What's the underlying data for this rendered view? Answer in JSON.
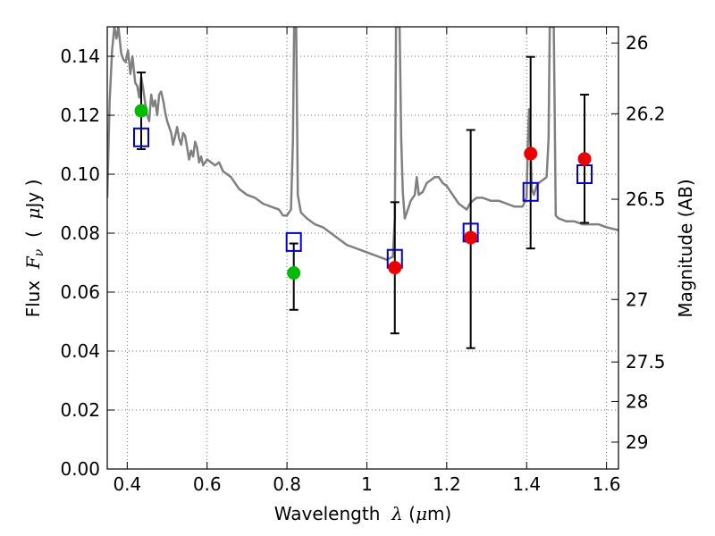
{
  "chart_data": {
    "type": "scatter",
    "xlabel": "Wavelength λ (μm)",
    "ylabel": "Flux F_ν (μJy)",
    "ylabel_right": "Magnitude (AB)",
    "xlim": [
      0.35,
      1.63
    ],
    "ylim": [
      0.0,
      0.15
    ],
    "x_ticks": [
      0.4,
      0.6,
      0.8,
      1.0,
      1.2,
      1.4,
      1.6
    ],
    "x_tick_labels": [
      "0.4",
      "0.6",
      "0.8",
      "1",
      "1.2",
      "1.4",
      "1.6"
    ],
    "y_ticks": [
      0.0,
      0.02,
      0.04,
      0.06,
      0.08,
      0.1,
      0.12,
      0.14
    ],
    "y_tick_labels": [
      "0.00",
      "0.02",
      "0.04",
      "0.06",
      "0.08",
      "0.10",
      "0.12",
      "0.14"
    ],
    "right_ticks": [
      {
        "flux": 0.1445,
        "label": "26"
      },
      {
        "flux": 0.1205,
        "label": "26.2"
      },
      {
        "flux": 0.0915,
        "label": "26.5"
      },
      {
        "flux": 0.0575,
        "label": "27"
      },
      {
        "flux": 0.0363,
        "label": "27.5"
      },
      {
        "flux": 0.0229,
        "label": "28"
      },
      {
        "flux": 0.0091,
        "label": "29"
      }
    ],
    "grid": true,
    "model_spectrum": {
      "color": "#808080",
      "points": [
        [
          0.35,
          0.092
        ],
        [
          0.356,
          0.125
        ],
        [
          0.362,
          0.142
        ],
        [
          0.368,
          0.15
        ],
        [
          0.373,
          0.146
        ],
        [
          0.378,
          0.15
        ],
        [
          0.385,
          0.141
        ],
        [
          0.39,
          0.139
        ],
        [
          0.396,
          0.138
        ],
        [
          0.402,
          0.142
        ],
        [
          0.408,
          0.134
        ],
        [
          0.413,
          0.14
        ],
        [
          0.42,
          0.131
        ],
        [
          0.425,
          0.13
        ],
        [
          0.43,
          0.126
        ],
        [
          0.435,
          0.133
        ],
        [
          0.44,
          0.129
        ],
        [
          0.445,
          0.124
        ],
        [
          0.45,
          0.12
        ],
        [
          0.455,
          0.118
        ],
        [
          0.46,
          0.127
        ],
        [
          0.465,
          0.123
        ],
        [
          0.47,
          0.125
        ],
        [
          0.475,
          0.12
        ],
        [
          0.48,
          0.127
        ],
        [
          0.485,
          0.128
        ],
        [
          0.49,
          0.125
        ],
        [
          0.495,
          0.121
        ],
        [
          0.5,
          0.118
        ],
        [
          0.505,
          0.116
        ],
        [
          0.51,
          0.114
        ],
        [
          0.515,
          0.11
        ],
        [
          0.52,
          0.113
        ],
        [
          0.525,
          0.116
        ],
        [
          0.53,
          0.112
        ],
        [
          0.535,
          0.11
        ],
        [
          0.54,
          0.114
        ],
        [
          0.545,
          0.113
        ],
        [
          0.55,
          0.109
        ],
        [
          0.555,
          0.105
        ],
        [
          0.56,
          0.108
        ],
        [
          0.565,
          0.106
        ],
        [
          0.57,
          0.111
        ],
        [
          0.575,
          0.109
        ],
        [
          0.58,
          0.104
        ],
        [
          0.585,
          0.106
        ],
        [
          0.59,
          0.103
        ],
        [
          0.6,
          0.105
        ],
        [
          0.61,
          0.104
        ],
        [
          0.62,
          0.103
        ],
        [
          0.63,
          0.104
        ],
        [
          0.64,
          0.101
        ],
        [
          0.65,
          0.1
        ],
        [
          0.66,
          0.099
        ],
        [
          0.67,
          0.097
        ],
        [
          0.68,
          0.095
        ],
        [
          0.69,
          0.094
        ],
        [
          0.7,
          0.093
        ],
        [
          0.72,
          0.092
        ],
        [
          0.74,
          0.09
        ],
        [
          0.76,
          0.089
        ],
        [
          0.78,
          0.088
        ],
        [
          0.79,
          0.086
        ],
        [
          0.8,
          0.086
        ],
        [
          0.81,
          0.088
        ],
        [
          0.815,
          0.112
        ],
        [
          0.818,
          0.15
        ],
        [
          0.823,
          0.15
        ],
        [
          0.827,
          0.093
        ],
        [
          0.835,
          0.087
        ],
        [
          0.85,
          0.085
        ],
        [
          0.87,
          0.083
        ],
        [
          0.89,
          0.082
        ],
        [
          0.91,
          0.08
        ],
        [
          0.93,
          0.078
        ],
        [
          0.95,
          0.076
        ],
        [
          0.97,
          0.075
        ],
        [
          0.99,
          0.074
        ],
        [
          1.01,
          0.073
        ],
        [
          1.03,
          0.072
        ],
        [
          1.05,
          0.071
        ],
        [
          1.065,
          0.072
        ],
        [
          1.07,
          0.085
        ],
        [
          1.073,
          0.15
        ],
        [
          1.082,
          0.15
        ],
        [
          1.086,
          0.112
        ],
        [
          1.09,
          0.094
        ],
        [
          1.095,
          0.085
        ],
        [
          1.1,
          0.087
        ],
        [
          1.11,
          0.091
        ],
        [
          1.12,
          0.093
        ],
        [
          1.125,
          0.099
        ],
        [
          1.13,
          0.093
        ],
        [
          1.14,
          0.094
        ],
        [
          1.15,
          0.097
        ],
        [
          1.16,
          0.098
        ],
        [
          1.17,
          0.099
        ],
        [
          1.18,
          0.099
        ],
        [
          1.19,
          0.097
        ],
        [
          1.2,
          0.096
        ],
        [
          1.21,
          0.094
        ],
        [
          1.22,
          0.092
        ],
        [
          1.23,
          0.09
        ],
        [
          1.24,
          0.089
        ],
        [
          1.25,
          0.088
        ],
        [
          1.258,
          0.09
        ],
        [
          1.265,
          0.091
        ],
        [
          1.275,
          0.092
        ],
        [
          1.29,
          0.092
        ],
        [
          1.31,
          0.091
        ],
        [
          1.33,
          0.091
        ],
        [
          1.35,
          0.09
        ],
        [
          1.37,
          0.089
        ],
        [
          1.39,
          0.089
        ],
        [
          1.4,
          0.092
        ],
        [
          1.403,
          0.11
        ],
        [
          1.406,
          0.122
        ],
        [
          1.41,
          0.109
        ],
        [
          1.413,
          0.095
        ],
        [
          1.418,
          0.093
        ],
        [
          1.425,
          0.096
        ],
        [
          1.43,
          0.097
        ],
        [
          1.44,
          0.098
        ],
        [
          1.45,
          0.099
        ],
        [
          1.455,
          0.112
        ],
        [
          1.458,
          0.15
        ],
        [
          1.468,
          0.15
        ],
        [
          1.47,
          0.125
        ],
        [
          1.473,
          0.086
        ],
        [
          1.48,
          0.085
        ],
        [
          1.5,
          0.084
        ],
        [
          1.52,
          0.084
        ],
        [
          1.54,
          0.083
        ],
        [
          1.56,
          0.083
        ],
        [
          1.58,
          0.083
        ],
        [
          1.6,
          0.082
        ],
        [
          1.63,
          0.081
        ]
      ]
    },
    "series": [
      {
        "marker": "open-square",
        "color": "#0000cc",
        "points": [
          {
            "x": 0.435,
            "y": 0.1125
          },
          {
            "x": 0.817,
            "y": 0.077
          },
          {
            "x": 1.07,
            "y": 0.0713
          },
          {
            "x": 1.26,
            "y": 0.0802
          },
          {
            "x": 1.41,
            "y": 0.094
          },
          {
            "x": 1.545,
            "y": 0.1
          }
        ]
      },
      {
        "marker": "filled-circle",
        "color": "#00bb00",
        "points": [
          {
            "x": 0.435,
            "y": 0.1215,
            "yerr_low": 0.1085,
            "yerr_high": 0.1345
          },
          {
            "x": 0.817,
            "y": 0.0665,
            "yerr_low": 0.054,
            "yerr_high": 0.0765
          }
        ]
      },
      {
        "marker": "filled-circle",
        "color": "#ee0000",
        "points": [
          {
            "x": 1.07,
            "y": 0.0683,
            "yerr_low": 0.046,
            "yerr_high": 0.0905
          },
          {
            "x": 1.26,
            "y": 0.0785,
            "yerr_low": 0.041,
            "yerr_high": 0.115
          },
          {
            "x": 1.41,
            "y": 0.107,
            "yerr_low": 0.0748,
            "yerr_high": 0.1398
          },
          {
            "x": 1.545,
            "y": 0.1052,
            "yerr_low": 0.0835,
            "yerr_high": 0.127
          }
        ]
      }
    ]
  }
}
